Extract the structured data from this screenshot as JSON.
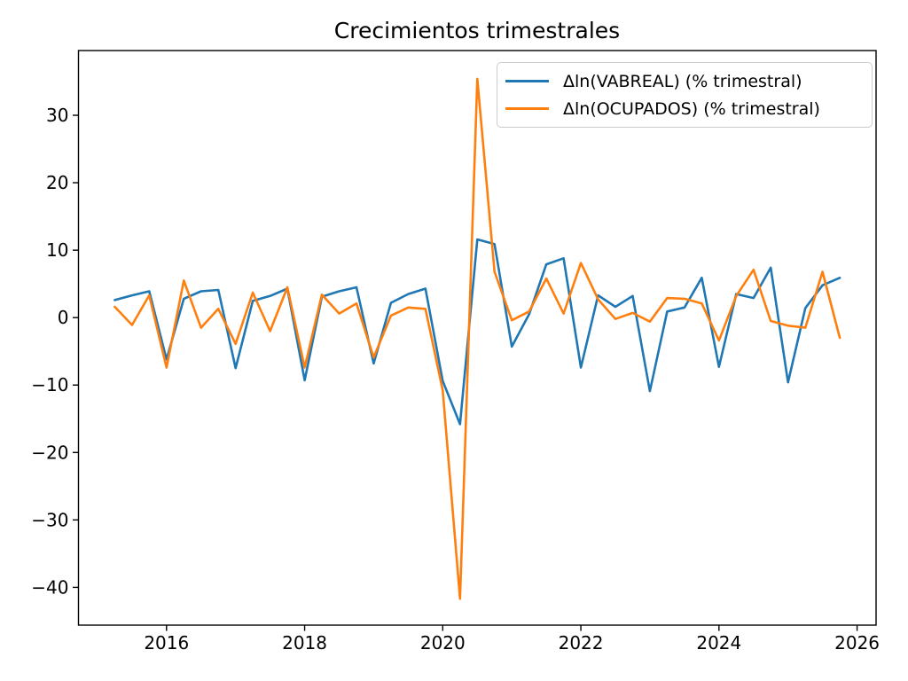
{
  "chart_data": {
    "type": "line",
    "title": "Crecimientos trimestrales",
    "xlabel": "",
    "ylabel": "",
    "x": [
      2015.25,
      2015.5,
      2015.75,
      2016.0,
      2016.25,
      2016.5,
      2016.75,
      2017.0,
      2017.25,
      2017.5,
      2017.75,
      2018.0,
      2018.25,
      2018.5,
      2018.75,
      2019.0,
      2019.25,
      2019.5,
      2019.75,
      2020.0,
      2020.25,
      2020.5,
      2020.75,
      2021.0,
      2021.25,
      2021.5,
      2021.75,
      2022.0,
      2022.25,
      2022.5,
      2022.75,
      2023.0,
      2023.25,
      2023.5,
      2023.75,
      2024.0,
      2024.25,
      2024.5,
      2024.75,
      2025.0,
      2025.25,
      2025.5,
      2025.75
    ],
    "series": [
      {
        "name": "Δln(VABREAL) (% trimestral)",
        "color": "#1f77b4",
        "values": [
          2.6,
          3.3,
          3.9,
          -6.2,
          2.8,
          3.9,
          4.1,
          -7.5,
          2.5,
          3.2,
          4.3,
          -9.3,
          3.1,
          3.9,
          4.5,
          -6.8,
          2.2,
          3.5,
          4.3,
          -9.4,
          -15.8,
          11.6,
          10.9,
          -4.3,
          0.5,
          7.9,
          8.8,
          -7.4,
          3.3,
          1.6,
          3.2,
          -10.9,
          0.9,
          1.5,
          5.9,
          -7.3,
          3.5,
          2.9,
          7.4,
          -9.6,
          1.4,
          4.8,
          5.9
        ]
      },
      {
        "name": "Δln(OCUPADOS) (% trimestral)",
        "color": "#ff7f0e",
        "values": [
          1.6,
          -1.1,
          3.3,
          -7.4,
          5.5,
          -1.5,
          1.3,
          -3.9,
          3.7,
          -2.0,
          4.5,
          -7.4,
          3.4,
          0.6,
          2.1,
          -5.9,
          0.3,
          1.5,
          1.3,
          -10.8,
          -41.7,
          35.4,
          6.8,
          -0.4,
          0.9,
          5.8,
          0.6,
          8.1,
          2.7,
          -0.2,
          0.7,
          -0.6,
          2.9,
          2.8,
          2.1,
          -3.4,
          3.2,
          7.1,
          -0.5,
          -1.2,
          -1.5,
          6.8,
          -3.0
        ]
      }
    ],
    "axes": {
      "xlim": [
        2014.725,
        2026.275
      ],
      "ylim": [
        -45.6,
        39.6
      ],
      "xticks": [
        2016,
        2018,
        2020,
        2022,
        2024,
        2026
      ],
      "yticks": [
        30,
        20,
        10,
        0,
        -10,
        -20,
        -30,
        -40
      ],
      "grid": false,
      "legend_position": "upper right"
    }
  }
}
